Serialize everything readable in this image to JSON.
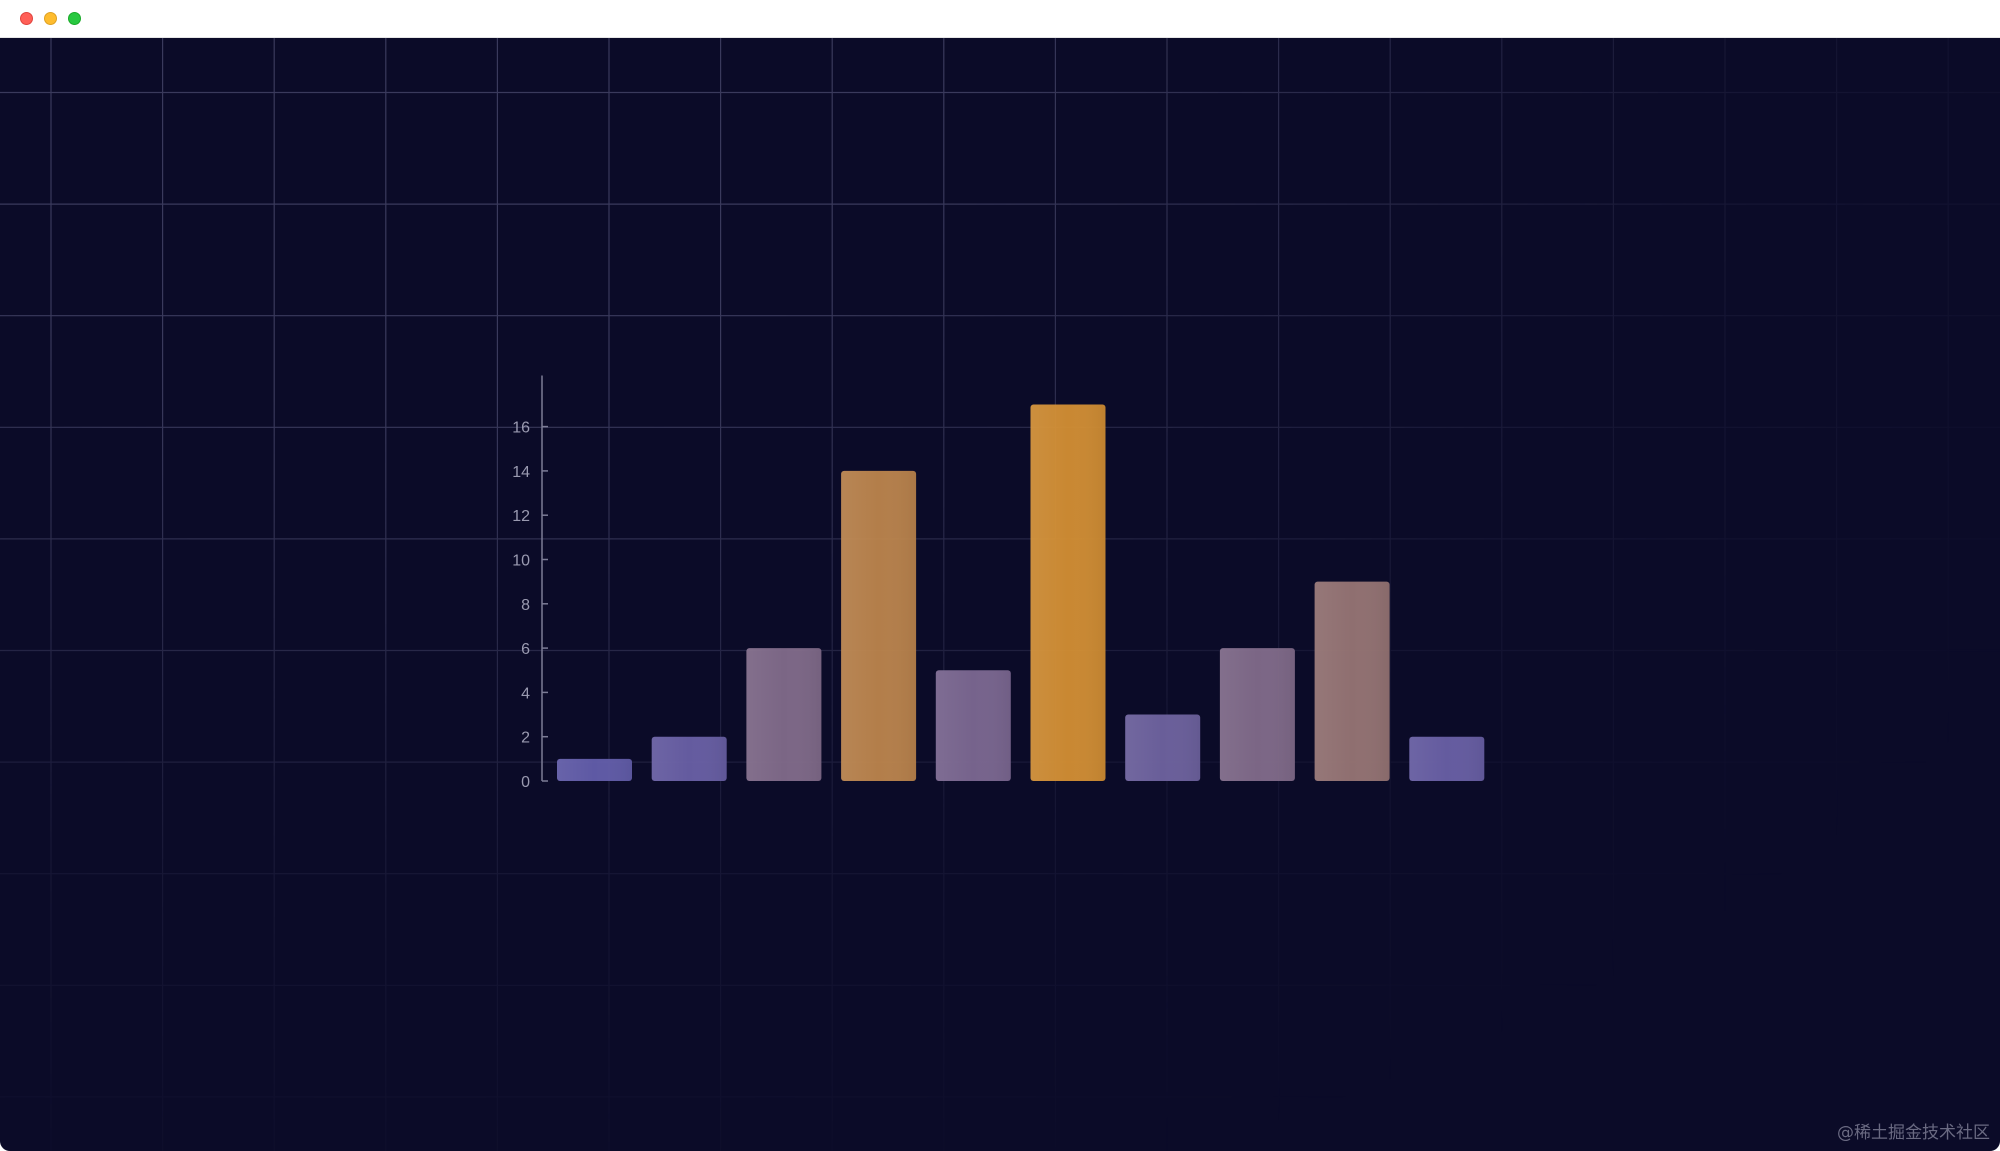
{
  "window": {
    "traffic_lights": [
      "close",
      "minimize",
      "maximize"
    ]
  },
  "colors": {
    "background": "#0b0b28",
    "grid": "#3a3a5c",
    "axis": "#7c7c96",
    "tick_label": "#9a9ab0",
    "bar_low": "#5f5cb0",
    "bar_high": "#d48f33"
  },
  "chart_data": {
    "type": "bar",
    "title": "",
    "xlabel": "",
    "ylabel": "",
    "ylim": [
      0,
      17
    ],
    "yticks": [
      0,
      2,
      4,
      6,
      8,
      10,
      12,
      14,
      16
    ],
    "values": [
      1,
      2,
      6,
      14,
      5,
      17,
      3,
      6,
      9,
      2
    ],
    "grid": true,
    "legend": "none"
  },
  "watermark": "@稀土掘金技术社区"
}
